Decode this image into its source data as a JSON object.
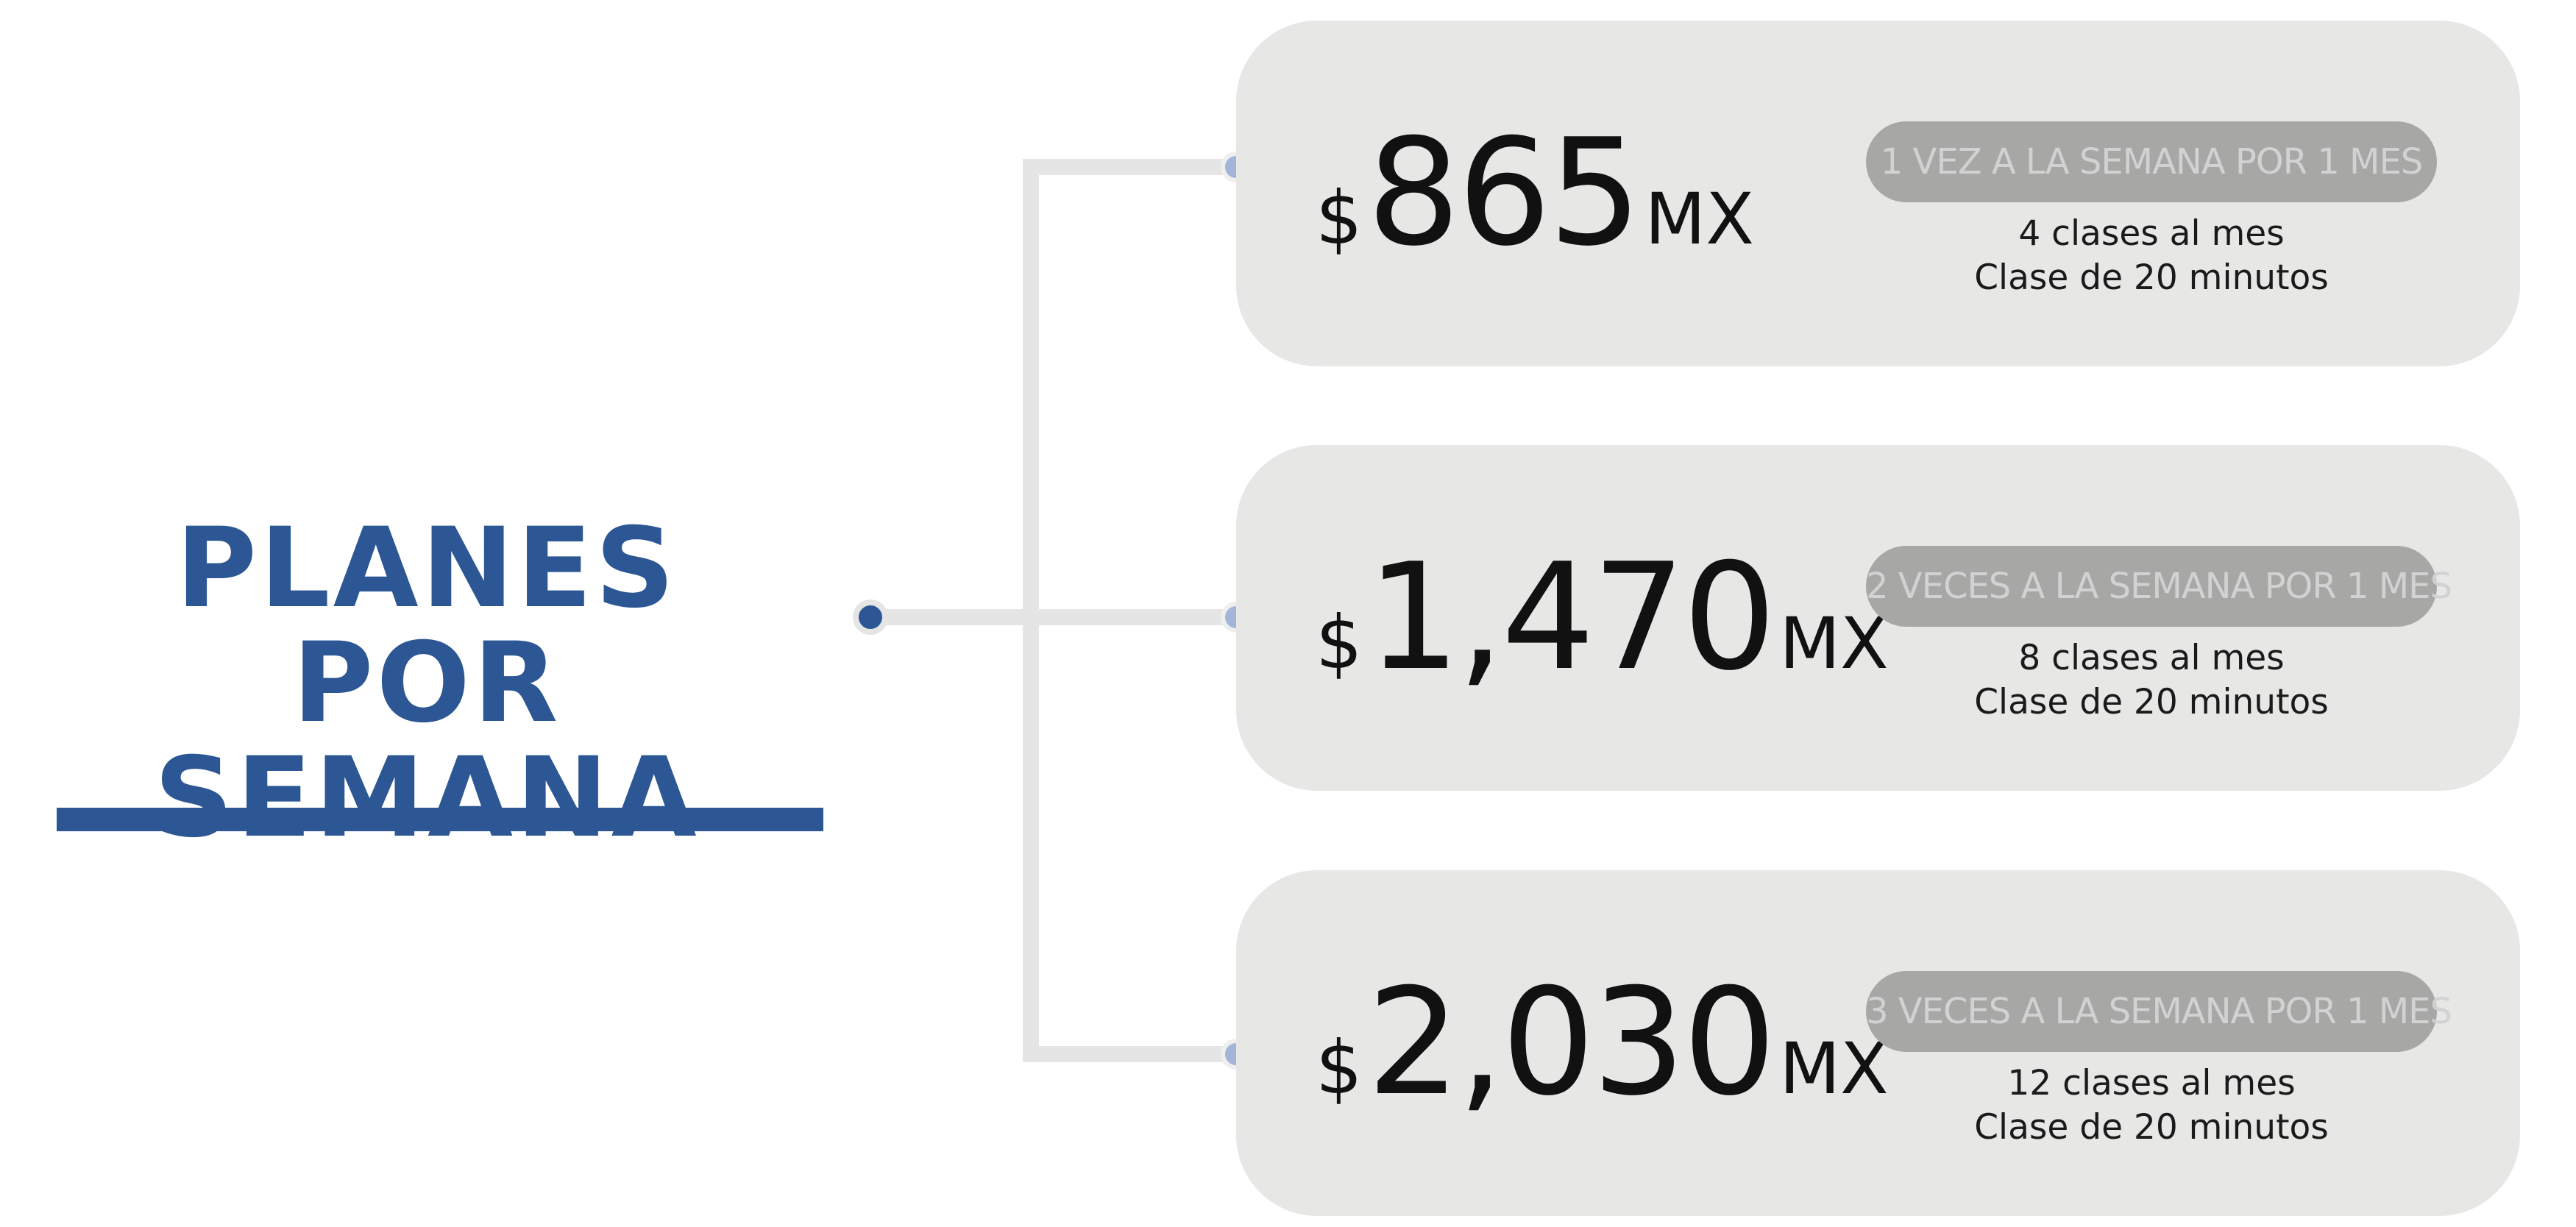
{
  "title": {
    "line1": "PLANES POR",
    "line2": "SEMANA"
  },
  "colors": {
    "accent": "#2c5794",
    "card": "#e7e7e6",
    "badge": "#a7a7a6",
    "connector": "#e5e5e5"
  },
  "plans": [
    {
      "currency": "$",
      "amount": "865",
      "unit": "MX",
      "badge": "1 VEZ A LA SEMANA POR 1 MES",
      "classes": "4 clases al mes",
      "duration": "Clase de 20 minutos"
    },
    {
      "currency": "$",
      "amount": "1,470",
      "unit": "MX",
      "badge": "2 VECES A LA SEMANA POR 1 MES",
      "classes": "8 clases al mes",
      "duration": "Clase de 20 minutos"
    },
    {
      "currency": "$",
      "amount": "2,030",
      "unit": "MX",
      "badge": "3 VECES A LA SEMANA POR 1 MES",
      "classes": "12 clases al mes",
      "duration": "Clase de 20 minutos"
    }
  ]
}
